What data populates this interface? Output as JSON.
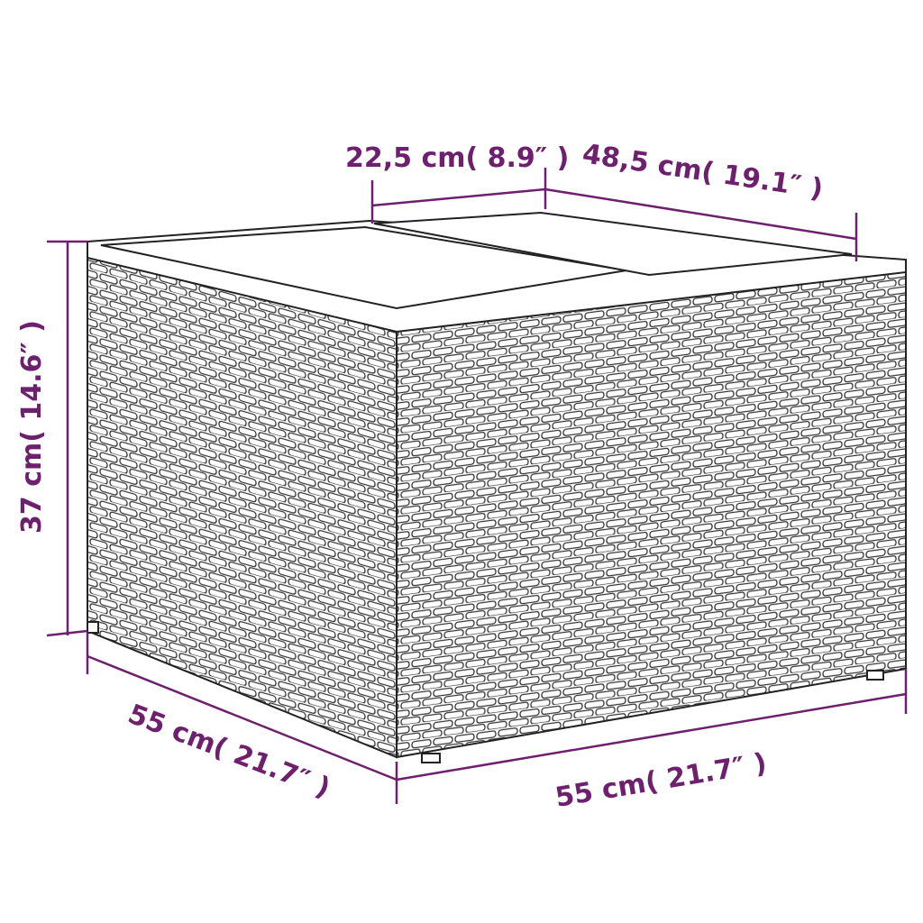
{
  "colors": {
    "dimension": "#6e1f6e",
    "outline": "#222222",
    "background": "#ffffff"
  },
  "dimensions": {
    "top_width": "22,5 cm( 8.9″ )",
    "top_depth": "48,5 cm( 19.1″ )",
    "height": "37 cm( 14.6″ )",
    "bottom_left": "55 cm( 21.7″ )",
    "bottom_right": "55 cm( 21.7″ )"
  }
}
